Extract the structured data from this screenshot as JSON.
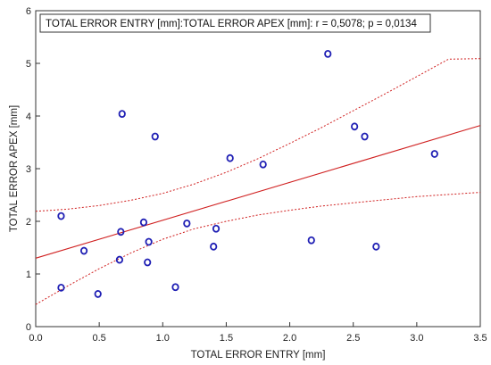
{
  "chart_data": {
    "type": "scatter",
    "title": "",
    "xlabel": "TOTAL ERROR ENTRY [mm]",
    "ylabel": "TOTAL ERROR APEX [mm]",
    "xlim": [
      0.0,
      3.5
    ],
    "ylim": [
      0,
      6
    ],
    "xticks": [
      "0.0",
      "0.5",
      "1.0",
      "1.5",
      "2.0",
      "2.5",
      "3.0",
      "3.5"
    ],
    "yticks": [
      "0",
      "1",
      "2",
      "3",
      "4",
      "5",
      "6"
    ],
    "legend": {
      "text": "TOTAL ERROR ENTRY [mm]:TOTAL ERROR APEX [mm]:   r = 0,5078; p = 0,0134",
      "placement": "top-left"
    },
    "grid": false,
    "marker_color": "#1f1fb4",
    "fit_color": "#d02020",
    "points": [
      {
        "x": 0.2,
        "y": 2.1
      },
      {
        "x": 0.2,
        "y": 0.74
      },
      {
        "x": 0.38,
        "y": 1.44
      },
      {
        "x": 0.49,
        "y": 0.62
      },
      {
        "x": 0.66,
        "y": 1.27
      },
      {
        "x": 0.67,
        "y": 1.8
      },
      {
        "x": 0.68,
        "y": 4.04
      },
      {
        "x": 0.85,
        "y": 1.98
      },
      {
        "x": 0.88,
        "y": 1.22
      },
      {
        "x": 0.89,
        "y": 1.61
      },
      {
        "x": 0.94,
        "y": 3.61
      },
      {
        "x": 1.1,
        "y": 0.75
      },
      {
        "x": 1.19,
        "y": 1.96
      },
      {
        "x": 1.4,
        "y": 1.52
      },
      {
        "x": 1.42,
        "y": 1.86
      },
      {
        "x": 1.53,
        "y": 3.2
      },
      {
        "x": 1.79,
        "y": 3.08
      },
      {
        "x": 2.17,
        "y": 1.64
      },
      {
        "x": 2.3,
        "y": 5.18
      },
      {
        "x": 2.51,
        "y": 3.8
      },
      {
        "x": 2.59,
        "y": 3.61
      },
      {
        "x": 2.68,
        "y": 1.52
      },
      {
        "x": 3.14,
        "y": 3.28
      }
    ],
    "fit_line": {
      "x": [
        0.0,
        3.5
      ],
      "y": [
        1.3,
        3.82
      ]
    },
    "confidence_upper": {
      "x": [
        0.0,
        0.25,
        0.5,
        0.75,
        1.0,
        1.25,
        1.5,
        1.75,
        2.0,
        2.25,
        2.5,
        2.75,
        3.0,
        3.25,
        3.5
      ],
      "y": [
        2.19,
        2.23,
        2.3,
        2.4,
        2.53,
        2.71,
        2.93,
        3.19,
        3.48,
        3.78,
        4.1,
        4.42,
        4.75,
        5.08,
        5.09
      ]
    },
    "confidence_lower": {
      "x": [
        0.0,
        0.25,
        0.5,
        0.75,
        1.0,
        1.25,
        1.5,
        1.75,
        2.0,
        2.25,
        2.5,
        2.75,
        3.0,
        3.25,
        3.5
      ],
      "y": [
        0.42,
        0.77,
        1.1,
        1.4,
        1.66,
        1.86,
        2.0,
        2.12,
        2.21,
        2.29,
        2.35,
        2.41,
        2.47,
        2.51,
        2.55
      ]
    }
  }
}
